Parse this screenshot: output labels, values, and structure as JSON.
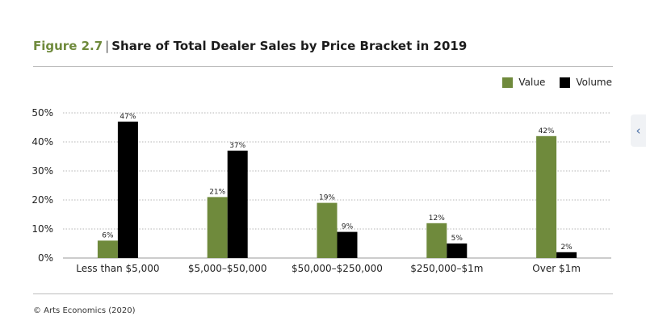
{
  "header": {
    "figure_label": "Figure 2.7",
    "separator": "|",
    "title": "Share of Total Dealer Sales by Price Bracket in 2019"
  },
  "legend": [
    {
      "label": "Value",
      "color": "#6f8a3c"
    },
    {
      "label": "Volume",
      "color": "#000000"
    }
  ],
  "footer": {
    "source": "© Arts Economics (2020)"
  },
  "side_tab": {
    "icon": "chevron-left-icon",
    "glyph": "‹"
  },
  "chart_data": {
    "type": "bar",
    "title": "Share of Total Dealer Sales by Price Bracket in 2019",
    "categories": [
      "Less than $5,000",
      "$5,000–$50,000",
      "$50,000–$250,000",
      "$250,000–$1m",
      "Over $1m"
    ],
    "series": [
      {
        "name": "Value",
        "color": "#6f8a3c",
        "values": [
          6,
          21,
          19,
          12,
          42
        ],
        "labels": [
          "6%",
          "21%",
          "19%",
          "12%",
          "42%"
        ]
      },
      {
        "name": "Volume",
        "color": "#000000",
        "values": [
          47,
          37,
          9,
          5,
          2
        ],
        "labels": [
          "47%",
          "37%",
          "9%",
          "5%",
          "2%"
        ]
      }
    ],
    "ylim": [
      0,
      50
    ],
    "yticks": [
      0,
      10,
      20,
      30,
      40,
      50
    ],
    "ytick_labels": [
      "0%",
      "10%",
      "20%",
      "30%",
      "40%",
      "50%"
    ],
    "grid": "horizontal dotted",
    "legend_position": "top-right",
    "xlabel": "",
    "ylabel": ""
  }
}
